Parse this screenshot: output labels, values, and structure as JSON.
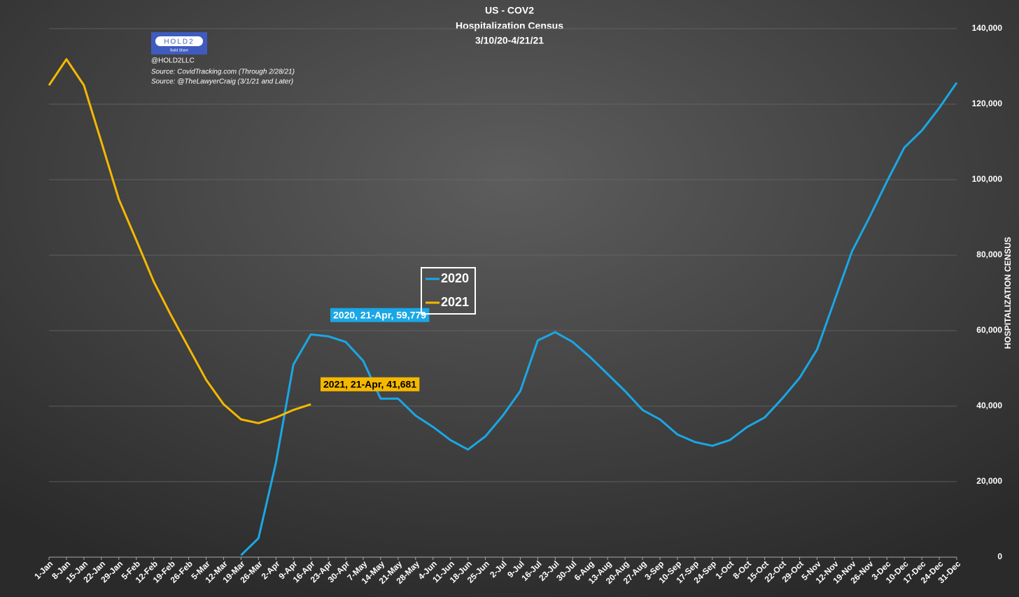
{
  "chart_data": {
    "type": "line",
    "title": [
      "US - COV2",
      "Hospitalization Census",
      "3/10/20-4/21/21"
    ],
    "logo": {
      "name": "HOLD2",
      "tagline": "Build Share"
    },
    "credits": [
      "@HOLD2LLC",
      "Source: CovidTracking.com (Through 2/28/21)",
      "Source: @TheLawyerCraig (3/1/21 and Later)"
    ],
    "y_axis_label": "HOSPITALIZATION CENSUS",
    "categories": [
      "1-Jan",
      "8-Jan",
      "15-Jan",
      "22-Jan",
      "29-Jan",
      "5-Feb",
      "12-Feb",
      "19-Feb",
      "26-Feb",
      "5-Mar",
      "12-Mar",
      "19-Mar",
      "26-Mar",
      "2-Apr",
      "9-Apr",
      "16-Apr",
      "23-Apr",
      "30-Apr",
      "7-May",
      "14-May",
      "21-May",
      "28-May",
      "4-Jun",
      "11-Jun",
      "18-Jun",
      "25-Jun",
      "2-Jul",
      "9-Jul",
      "16-Jul",
      "23-Jul",
      "30-Jul",
      "6-Aug",
      "13-Aug",
      "20-Aug",
      "27-Aug",
      "3-Sep",
      "10-Sep",
      "17-Sep",
      "24-Sep",
      "1-Oct",
      "8-Oct",
      "15-Oct",
      "22-Oct",
      "29-Oct",
      "5-Nov",
      "12-Nov",
      "19-Nov",
      "26-Nov",
      "3-Dec",
      "10-Dec",
      "17-Dec",
      "24-Dec",
      "31-Dec"
    ],
    "series": [
      {
        "name": "2020",
        "color": "#1aa7e6",
        "values": [
          null,
          null,
          null,
          null,
          null,
          null,
          null,
          null,
          null,
          null,
          null,
          500,
          5000,
          25000,
          51000,
          59000,
          58500,
          57000,
          52000,
          42000,
          42000,
          37500,
          34500,
          31000,
          28500,
          32000,
          37500,
          44000,
          57400,
          59600,
          57000,
          53000,
          48500,
          44000,
          39000,
          36500,
          32500,
          30500,
          29500,
          31000,
          34500,
          37000,
          42000,
          47500,
          55000,
          68000,
          81000,
          90000,
          99500,
          108500,
          113000,
          119000,
          125700
        ]
      },
      {
        "name": "2021",
        "color": "#f5b800",
        "values": [
          125000,
          131900,
          125000,
          110000,
          94800,
          84000,
          73000,
          64000,
          55500,
          47000,
          40500,
          36500,
          35500,
          37000,
          39000,
          40500,
          null,
          null,
          null,
          null,
          null,
          null,
          null,
          null,
          null,
          null,
          null,
          null,
          null,
          null,
          null,
          null,
          null,
          null,
          null,
          null,
          null,
          null,
          null,
          null,
          null,
          null,
          null,
          null,
          null,
          null,
          null,
          null,
          null,
          null,
          null,
          null,
          null
        ]
      }
    ],
    "annotations": [
      {
        "text": "2020, 21-Apr, 59,779",
        "series": 0
      },
      {
        "text": "2021, 21-Apr, 41,681",
        "series": 1
      }
    ],
    "ylim": [
      0,
      140000
    ],
    "yticks": [
      0,
      {
        "value": 20000,
        "label": "20,000"
      },
      {
        "value": 40000,
        "label": "40,000"
      },
      {
        "value": 60000,
        "label": "60,000"
      },
      {
        "value": 80000,
        "label": "80,000"
      },
      {
        "value": 100000,
        "label": "100,000"
      },
      {
        "value": 120000,
        "label": "120,000"
      },
      {
        "value": 140000,
        "label": "140,000"
      }
    ],
    "grid": true
  }
}
